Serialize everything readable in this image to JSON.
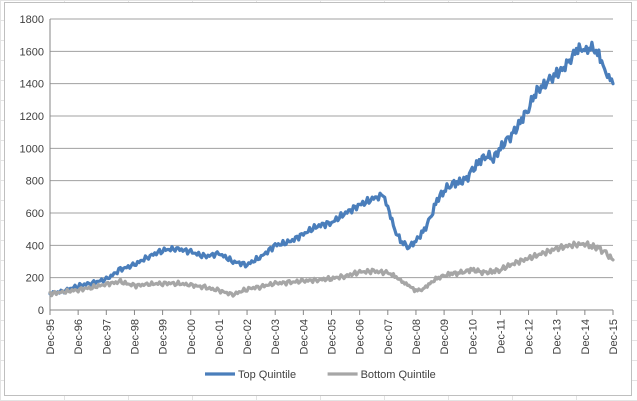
{
  "chart_data": {
    "type": "line",
    "title": "",
    "xlabel": "",
    "ylabel": "",
    "ylim": [
      0,
      1800
    ],
    "yticks": [
      0,
      200,
      400,
      600,
      800,
      1000,
      1200,
      1400,
      1600,
      1800
    ],
    "xlim": [
      "1995-12",
      "2015-12"
    ],
    "x_tick_labels": [
      "Dec-95",
      "Dec-96",
      "Dec-97",
      "Dec-98",
      "Dec-99",
      "Dec-00",
      "Dec-01",
      "Dec-02",
      "Dec-03",
      "Dec-04",
      "Dec-05",
      "Dec-06",
      "Dec-07",
      "Dec-08",
      "Dec-09",
      "Dec-10",
      "Dec-11",
      "Dec-12",
      "Dec-13",
      "Dec-14",
      "Dec-15"
    ],
    "grid": "horizontal",
    "legend_position": "bottom",
    "series": [
      {
        "name": "Top Quintile",
        "color": "#4a7ebb",
        "x": [
          "1995-12",
          "1996-06",
          "1996-12",
          "1997-06",
          "1997-12",
          "1998-06",
          "1998-12",
          "1999-06",
          "1999-12",
          "2000-06",
          "2000-12",
          "2001-06",
          "2001-12",
          "2002-06",
          "2002-12",
          "2003-06",
          "2003-12",
          "2004-06",
          "2004-12",
          "2005-06",
          "2005-12",
          "2006-06",
          "2006-12",
          "2007-06",
          "2007-10",
          "2007-12",
          "2008-03",
          "2008-06",
          "2008-09",
          "2008-12",
          "2009-03",
          "2009-06",
          "2009-09",
          "2009-12",
          "2010-03",
          "2010-06",
          "2010-09",
          "2010-12",
          "2011-03",
          "2011-06",
          "2011-09",
          "2011-12",
          "2012-03",
          "2012-06",
          "2012-09",
          "2012-12",
          "2013-03",
          "2013-06",
          "2013-09",
          "2013-12",
          "2014-03",
          "2014-06",
          "2014-09",
          "2014-12",
          "2015-03",
          "2015-06",
          "2015-09",
          "2015-12"
        ],
        "values": [
          100,
          118,
          150,
          168,
          190,
          250,
          280,
          330,
          370,
          380,
          360,
          330,
          350,
          300,
          280,
          330,
          400,
          420,
          470,
          520,
          540,
          600,
          650,
          690,
          710,
          640,
          490,
          420,
          390,
          430,
          480,
          560,
          680,
          740,
          780,
          790,
          800,
          860,
          920,
          960,
          940,
          1000,
          1050,
          1100,
          1180,
          1250,
          1350,
          1380,
          1420,
          1460,
          1500,
          1560,
          1620,
          1600,
          1620,
          1580,
          1470,
          1400
        ]
      },
      {
        "name": "Bottom Quintile",
        "color": "#a6a6a6",
        "x": [
          "1995-12",
          "1996-06",
          "1996-12",
          "1997-06",
          "1997-12",
          "1998-06",
          "1998-12",
          "1999-06",
          "1999-12",
          "2000-06",
          "2000-12",
          "2001-06",
          "2001-12",
          "2002-06",
          "2002-12",
          "2003-06",
          "2003-12",
          "2004-06",
          "2004-12",
          "2005-06",
          "2005-12",
          "2006-06",
          "2006-12",
          "2007-06",
          "2007-12",
          "2008-03",
          "2008-06",
          "2008-09",
          "2008-12",
          "2009-03",
          "2009-06",
          "2009-09",
          "2009-12",
          "2010-03",
          "2010-06",
          "2010-09",
          "2010-12",
          "2011-03",
          "2011-06",
          "2011-09",
          "2011-12",
          "2012-06",
          "2012-12",
          "2013-06",
          "2013-12",
          "2014-06",
          "2014-12",
          "2015-03",
          "2015-06",
          "2015-09",
          "2015-12"
        ],
        "values": [
          100,
          112,
          125,
          140,
          160,
          175,
          150,
          160,
          165,
          165,
          155,
          140,
          120,
          95,
          130,
          145,
          165,
          170,
          180,
          185,
          195,
          210,
          235,
          240,
          230,
          210,
          175,
          150,
          120,
          130,
          165,
          195,
          210,
          225,
          230,
          240,
          250,
          235,
          230,
          240,
          250,
          290,
          320,
          350,
          380,
          400,
          410,
          395,
          380,
          350,
          310
        ]
      }
    ]
  }
}
